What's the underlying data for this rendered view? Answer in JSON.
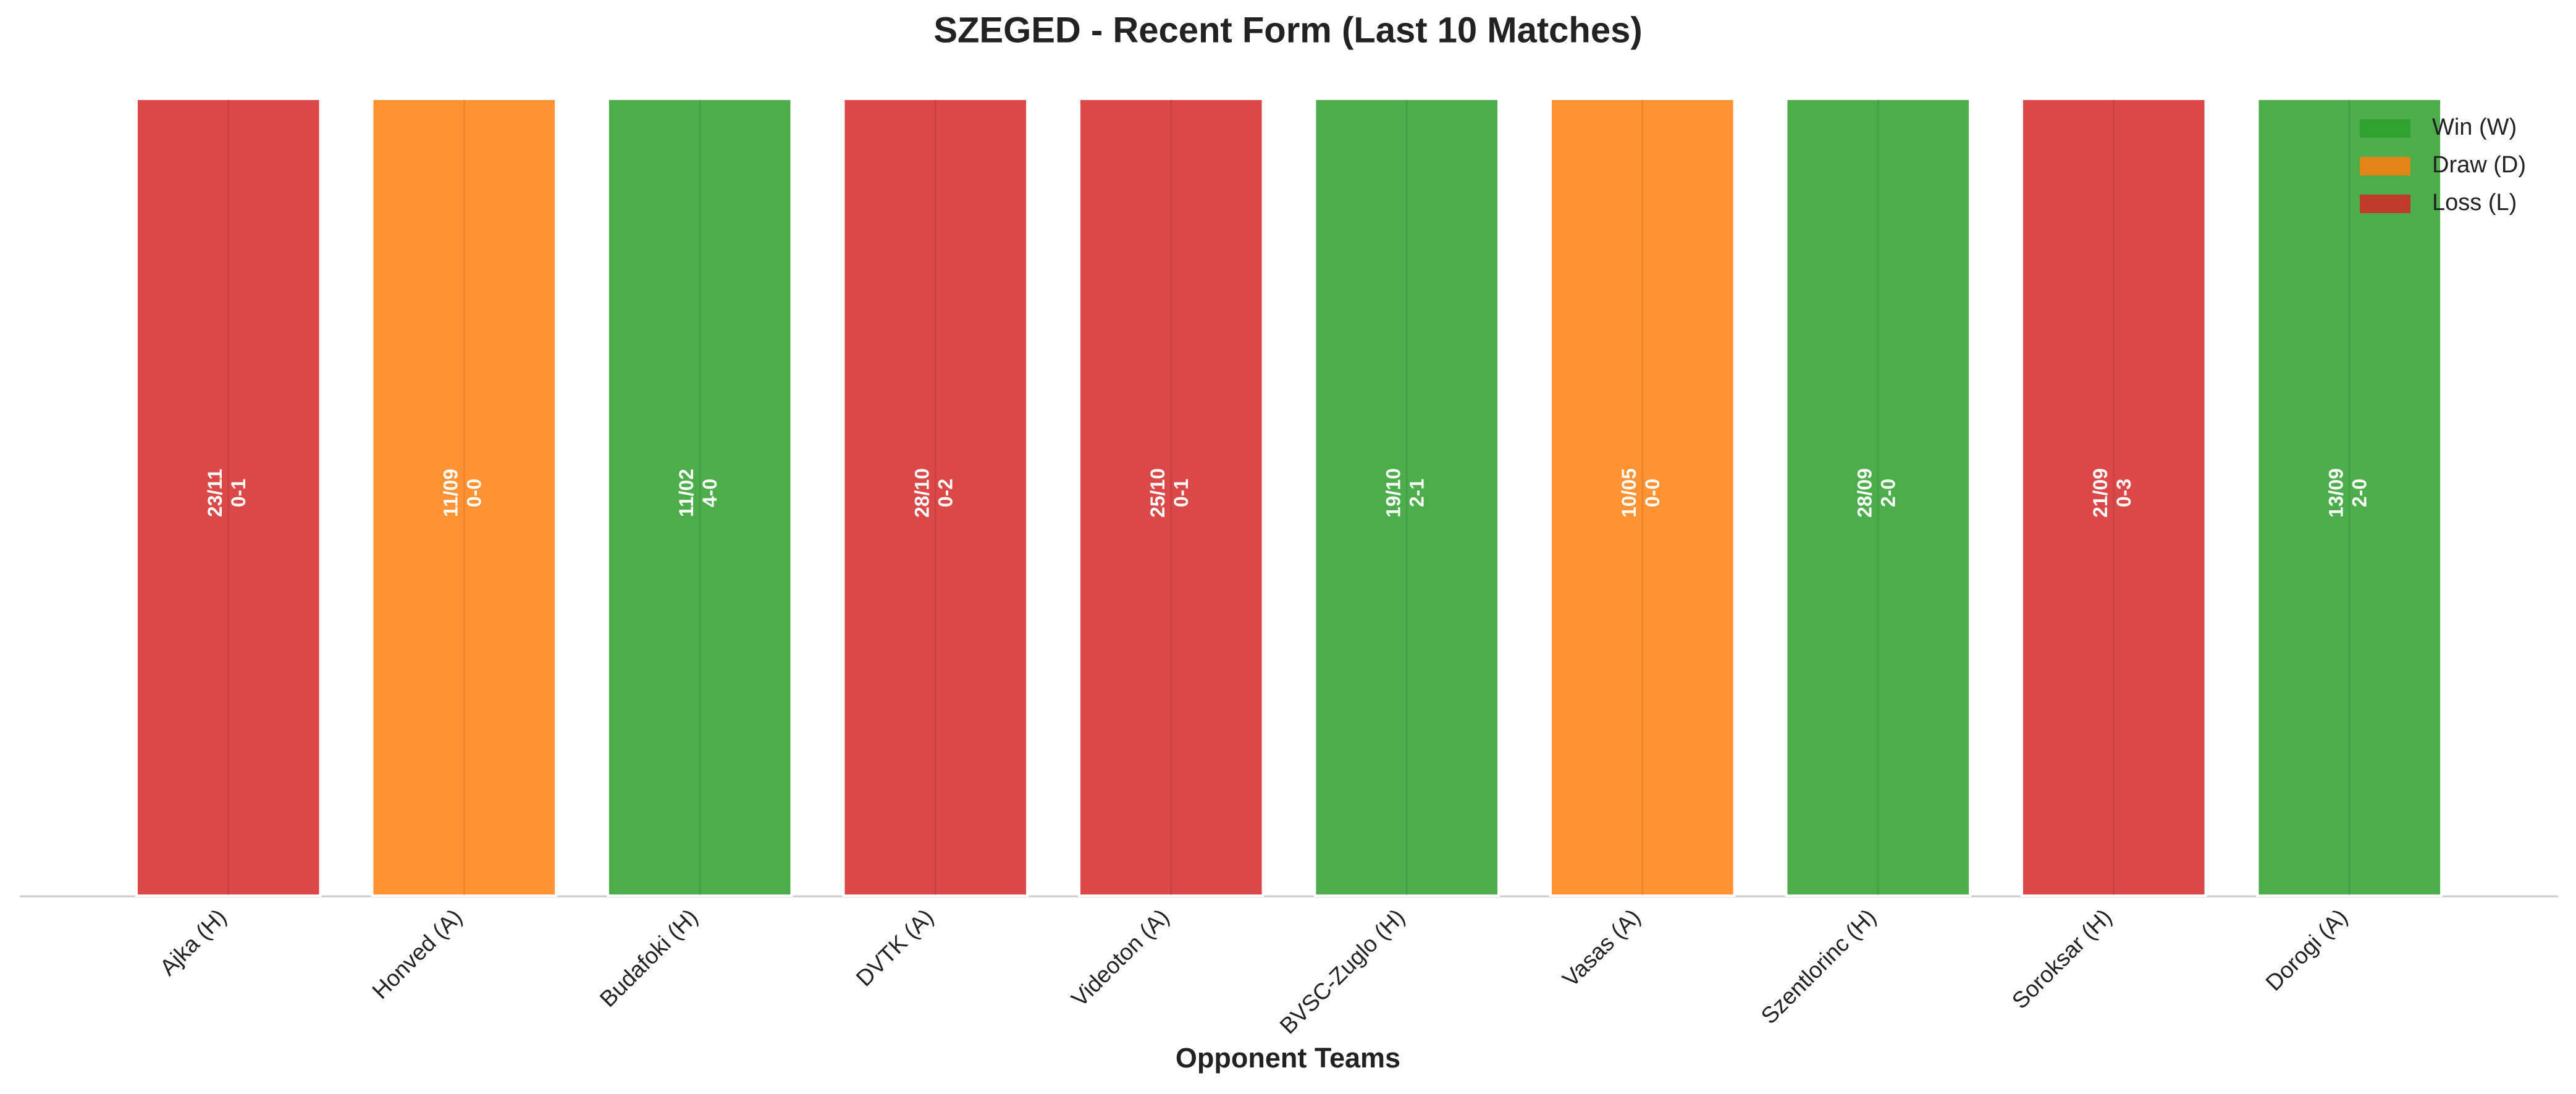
{
  "chart_data": {
    "type": "bar",
    "title": "SZEGED - Recent Form (Last 10 Matches)",
    "x_label": "Opponent Teams",
    "categories": [
      "Ajka (H)",
      "Honved (A)",
      "Budafoki (H)",
      "DVTK (A)",
      "Videoton (A)",
      "BVSC-Zuglo (H)",
      "Vasas (A)",
      "Szentlorinc (H)",
      "Soroksar (H)",
      "Dorogi (A)"
    ],
    "series": [
      {
        "name": "Win (W)",
        "color": "#2ca02c",
        "values": [
          null,
          null,
          1,
          null,
          null,
          1,
          null,
          1,
          null,
          1
        ]
      },
      {
        "name": "Draw (D)",
        "color": "#ff7f0e",
        "values": [
          null,
          1,
          null,
          null,
          null,
          null,
          1,
          null,
          null,
          null
        ]
      },
      {
        "name": "Loss (L)",
        "color": "#d62728",
        "values": [
          1,
          null,
          null,
          1,
          1,
          null,
          null,
          null,
          1,
          null
        ]
      }
    ],
    "bar_labels": [
      {
        "date": "23/11",
        "score": "0-1"
      },
      {
        "date": "11/09",
        "score": "0-0"
      },
      {
        "date": "11/02",
        "score": "4-0"
      },
      {
        "date": "28/10",
        "score": "0-2"
      },
      {
        "date": "25/10",
        "score": "0-1"
      },
      {
        "date": "19/10",
        "score": "2-1"
      },
      {
        "date": "10/05",
        "score": "0-0"
      },
      {
        "date": "28/09",
        "score": "2-0"
      },
      {
        "date": "21/09",
        "score": "0-3"
      },
      {
        "date": "13/09",
        "score": "2-0"
      }
    ],
    "ylim": [
      0,
      1
    ],
    "legend": "upper right"
  }
}
